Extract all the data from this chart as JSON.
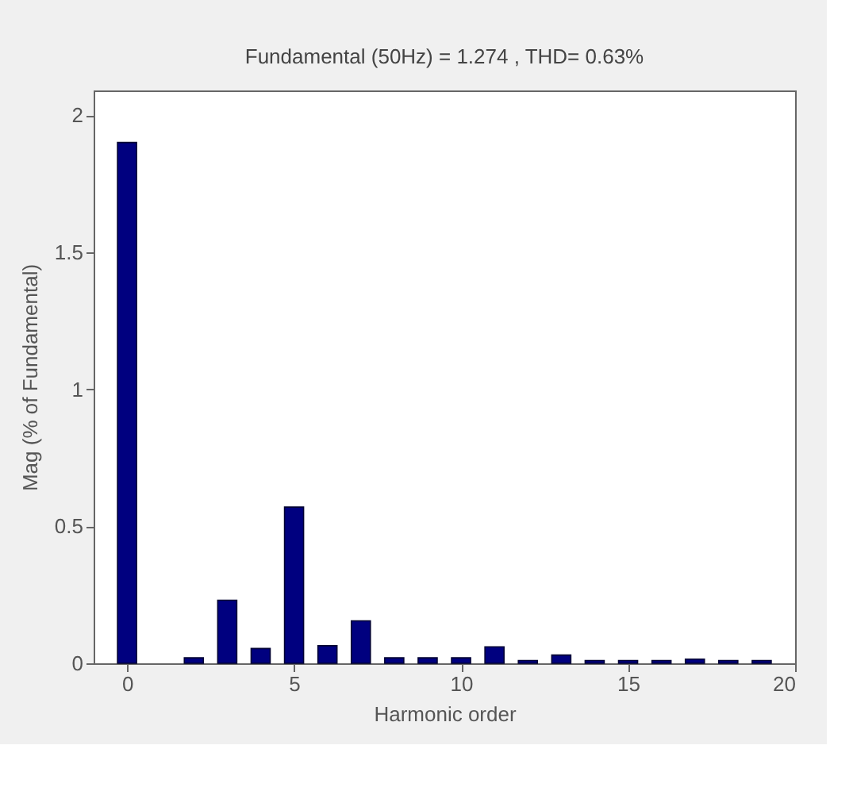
{
  "chart_data": {
    "type": "bar",
    "title": "Fundamental (50Hz) = 1.274 , THD= 0.63%",
    "xlabel": "Harmonic order",
    "ylabel": "Mag (% of Fundamental)",
    "x": [
      0,
      1,
      2,
      3,
      4,
      5,
      6,
      7,
      8,
      9,
      10,
      11,
      12,
      13,
      14,
      15,
      16,
      17,
      18,
      19
    ],
    "values": [
      1.9,
      null,
      0.02,
      0.23,
      0.054,
      0.57,
      0.064,
      0.155,
      0.02,
      0.02,
      0.02,
      0.06,
      0.01,
      0.03,
      0.01,
      0.01,
      0.01,
      0.015,
      0.01,
      0.01
    ],
    "color": "#00007f",
    "xlim": [
      -1,
      20
    ],
    "xticks": [
      0,
      5,
      10,
      15,
      20
    ],
    "ylim": [
      0,
      2.09
    ],
    "yticks": [
      0,
      0.5,
      1,
      1.5,
      2
    ],
    "grid": false
  }
}
